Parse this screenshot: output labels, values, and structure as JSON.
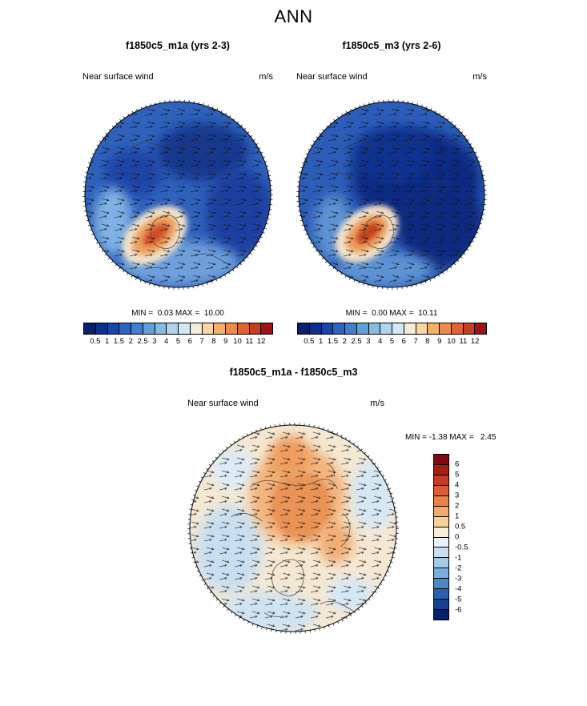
{
  "title": "ANN",
  "panels": {
    "left": {
      "title": "f1850c5_m1a (yrs 2-3)",
      "field_label": "Near surface wind",
      "units": "m/s",
      "minmax": "MIN =  0.03 MAX =  10.00"
    },
    "right": {
      "title": "f1850c5_m3 (yrs 2-6)",
      "field_label": "Near surface wind",
      "units": "m/s",
      "minmax": "MIN =  0.00 MAX =  10.11"
    },
    "diff": {
      "title": "f1850c5_m1a - f1850c5_m3",
      "field_label": "Near surface wind",
      "units": "m/s",
      "minmax": "MIN = -1.38 MAX =   2.45"
    }
  },
  "colorbars": {
    "speed": {
      "ticks": [
        "0.5",
        "1",
        "1.5",
        "2",
        "2.5",
        "3",
        "4",
        "5",
        "6",
        "7",
        "8",
        "9",
        "10",
        "11",
        "12"
      ],
      "colors": [
        "#081f6b",
        "#0a2f8f",
        "#1546ad",
        "#2a63c4",
        "#3f7fce",
        "#61a0d8",
        "#86bce2",
        "#aed4ec",
        "#d2e8f4",
        "#f3ecd9",
        "#f8d7a4",
        "#f4b06b",
        "#ee8a4a",
        "#e2632f",
        "#c93c22",
        "#9e1214"
      ]
    },
    "diff": {
      "ticks": [
        "6",
        "5",
        "4",
        "3",
        "2",
        "1",
        "0.5",
        "0",
        "-0.5",
        "-1",
        "-2",
        "-3",
        "-4",
        "-5",
        "-6"
      ],
      "colors": [
        "#7f0a10",
        "#a81c18",
        "#c43a24",
        "#dd5d30",
        "#ea8248",
        "#f3a96b",
        "#f8cf9c",
        "#fbeed8",
        "#e8f2f8",
        "#c8e0f0",
        "#a3cbe6",
        "#77aeda",
        "#4c88c6",
        "#2a60ac",
        "#15418f",
        "#081f6b"
      ]
    }
  },
  "chart_data": [
    {
      "type": "heatmap",
      "subtype": "polar-stereographic-map-with-wind-vectors",
      "title": "f1850c5_m1a (yrs 2-3)",
      "field": "Near surface wind",
      "units": "m/s",
      "min": 0.03,
      "max": 10.0,
      "colorbar_levels": [
        0.5,
        1,
        1.5,
        2,
        2.5,
        3,
        4,
        5,
        6,
        7,
        8,
        9,
        10,
        11,
        12
      ],
      "colorbar_orientation": "horizontal",
      "overlay": "wind vector arrows and coastlines",
      "notes": "Arctic view; mostly 1-3 m/s blues over pole, high-wind orange/red maximum ~8-10 m/s over North Atlantic"
    },
    {
      "type": "heatmap",
      "subtype": "polar-stereographic-map-with-wind-vectors",
      "title": "f1850c5_m3 (yrs 2-6)",
      "field": "Near surface wind",
      "units": "m/s",
      "min": 0.0,
      "max": 10.11,
      "colorbar_levels": [
        0.5,
        1,
        1.5,
        2,
        2.5,
        3,
        4,
        5,
        6,
        7,
        8,
        9,
        10,
        11,
        12
      ],
      "colorbar_orientation": "horizontal",
      "overlay": "wind vector arrows and coastlines",
      "notes": "Arctic view; large very-low-wind dark navy region over central Arctic/Siberian side; North Atlantic maximum"
    },
    {
      "type": "heatmap",
      "subtype": "polar-stereographic-difference-map-with-wind-vectors",
      "title": "f1850c5_m1a - f1850c5_m3",
      "field": "Near surface wind",
      "units": "m/s",
      "min": -1.38,
      "max": 2.45,
      "colorbar_levels": [
        6,
        5,
        4,
        3,
        2,
        1,
        0.5,
        0,
        -0.5,
        -1,
        -2,
        -3,
        -4,
        -5,
        -6
      ],
      "colorbar_orientation": "vertical",
      "overlay": "difference wind vectors with cyclonic swirl near pole",
      "notes": "Mostly pale positive (0-1 m/s) with orange center swirl up to ~2.45; scattered weak negative pale-blue patches near edges"
    }
  ]
}
